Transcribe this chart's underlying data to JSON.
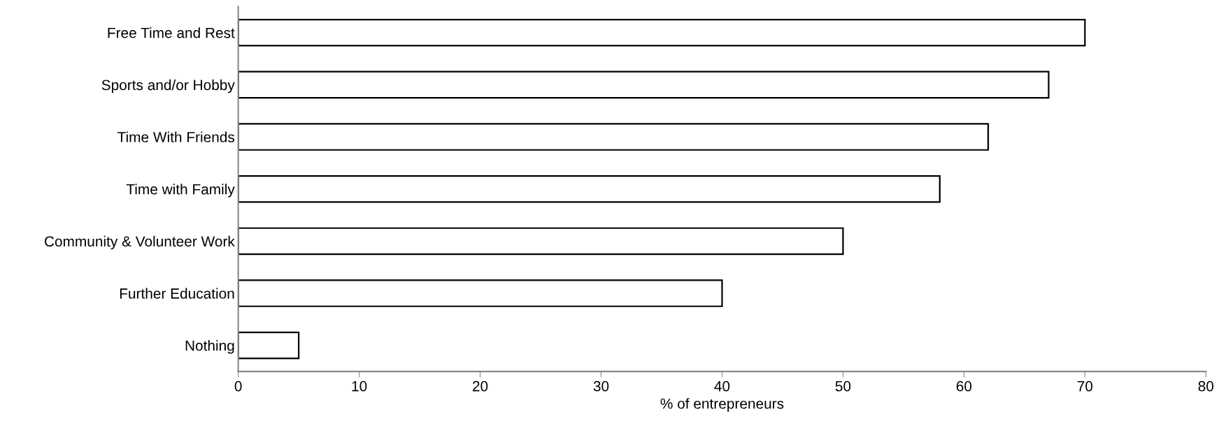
{
  "chart_data": {
    "type": "bar",
    "orientation": "horizontal",
    "xlabel": "% of entrepreneurs",
    "categories": [
      "Free Time and Rest",
      "Sports and/or Hobby",
      "Time With Friends",
      "Time with Family",
      "Community & Volunteer Work",
      "Further Education",
      "Nothing"
    ],
    "values": [
      70,
      67,
      62,
      58,
      50,
      40,
      5
    ],
    "color": "#ffffff",
    "xlim": [
      0,
      80
    ],
    "xticks": [
      0,
      10,
      20,
      30,
      40,
      50,
      60,
      70,
      80
    ],
    "grid": false
  }
}
